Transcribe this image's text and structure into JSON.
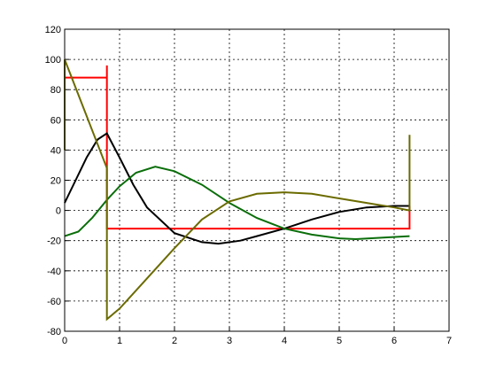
{
  "chart_data": {
    "type": "line",
    "xlim": [
      0,
      7
    ],
    "xticks": [
      0,
      1,
      2,
      3,
      4,
      5,
      6,
      7
    ],
    "ylim": [
      -80,
      120
    ],
    "yticks": [
      -80,
      -60,
      -40,
      -20,
      0,
      20,
      40,
      60,
      80,
      100,
      120
    ],
    "grid": true,
    "series": [
      {
        "color": "#ff0000",
        "x": [
          0,
          0.77,
          0.77,
          0.77,
          6.28,
          6.28
        ],
        "values": [
          88,
          88,
          96,
          -12,
          -12,
          3
        ]
      },
      {
        "color": "#000000",
        "x": [
          0,
          0.2,
          0.4,
          0.6,
          0.77,
          1.0,
          1.25,
          1.5,
          2.0,
          2.5,
          2.8,
          3.2,
          3.5,
          4.0,
          4.5,
          5.0,
          5.5,
          6.0,
          6.28
        ],
        "values": [
          5,
          20,
          35,
          47,
          51,
          35,
          17,
          2,
          -15,
          -21,
          -22,
          -20,
          -17,
          -12,
          -6,
          -1,
          2,
          3,
          3
        ]
      },
      {
        "color": "#0a6e0a",
        "x": [
          0,
          0.25,
          0.5,
          0.77,
          1.0,
          1.3,
          1.65,
          2.0,
          2.5,
          3.0,
          3.5,
          4.0,
          4.5,
          5.0,
          5.3,
          5.8,
          6.28
        ],
        "values": [
          -17,
          -14,
          -5,
          7,
          16,
          25,
          29,
          26,
          17,
          5,
          -5,
          -12,
          -16,
          -18.5,
          -19,
          -18,
          -17
        ]
      },
      {
        "color": "#6b6b00",
        "x": [
          0,
          0,
          0.77,
          0.77,
          1.0,
          1.5,
          2.0,
          2.5,
          3.0,
          3.5,
          4.0,
          4.5,
          5.0,
          5.5,
          6.0,
          6.28,
          6.28
        ],
        "values": [
          40,
          100,
          28,
          -72,
          -65,
          -45,
          -25,
          -6,
          6,
          11,
          12,
          11,
          8,
          5,
          2,
          0,
          50
        ]
      }
    ]
  }
}
